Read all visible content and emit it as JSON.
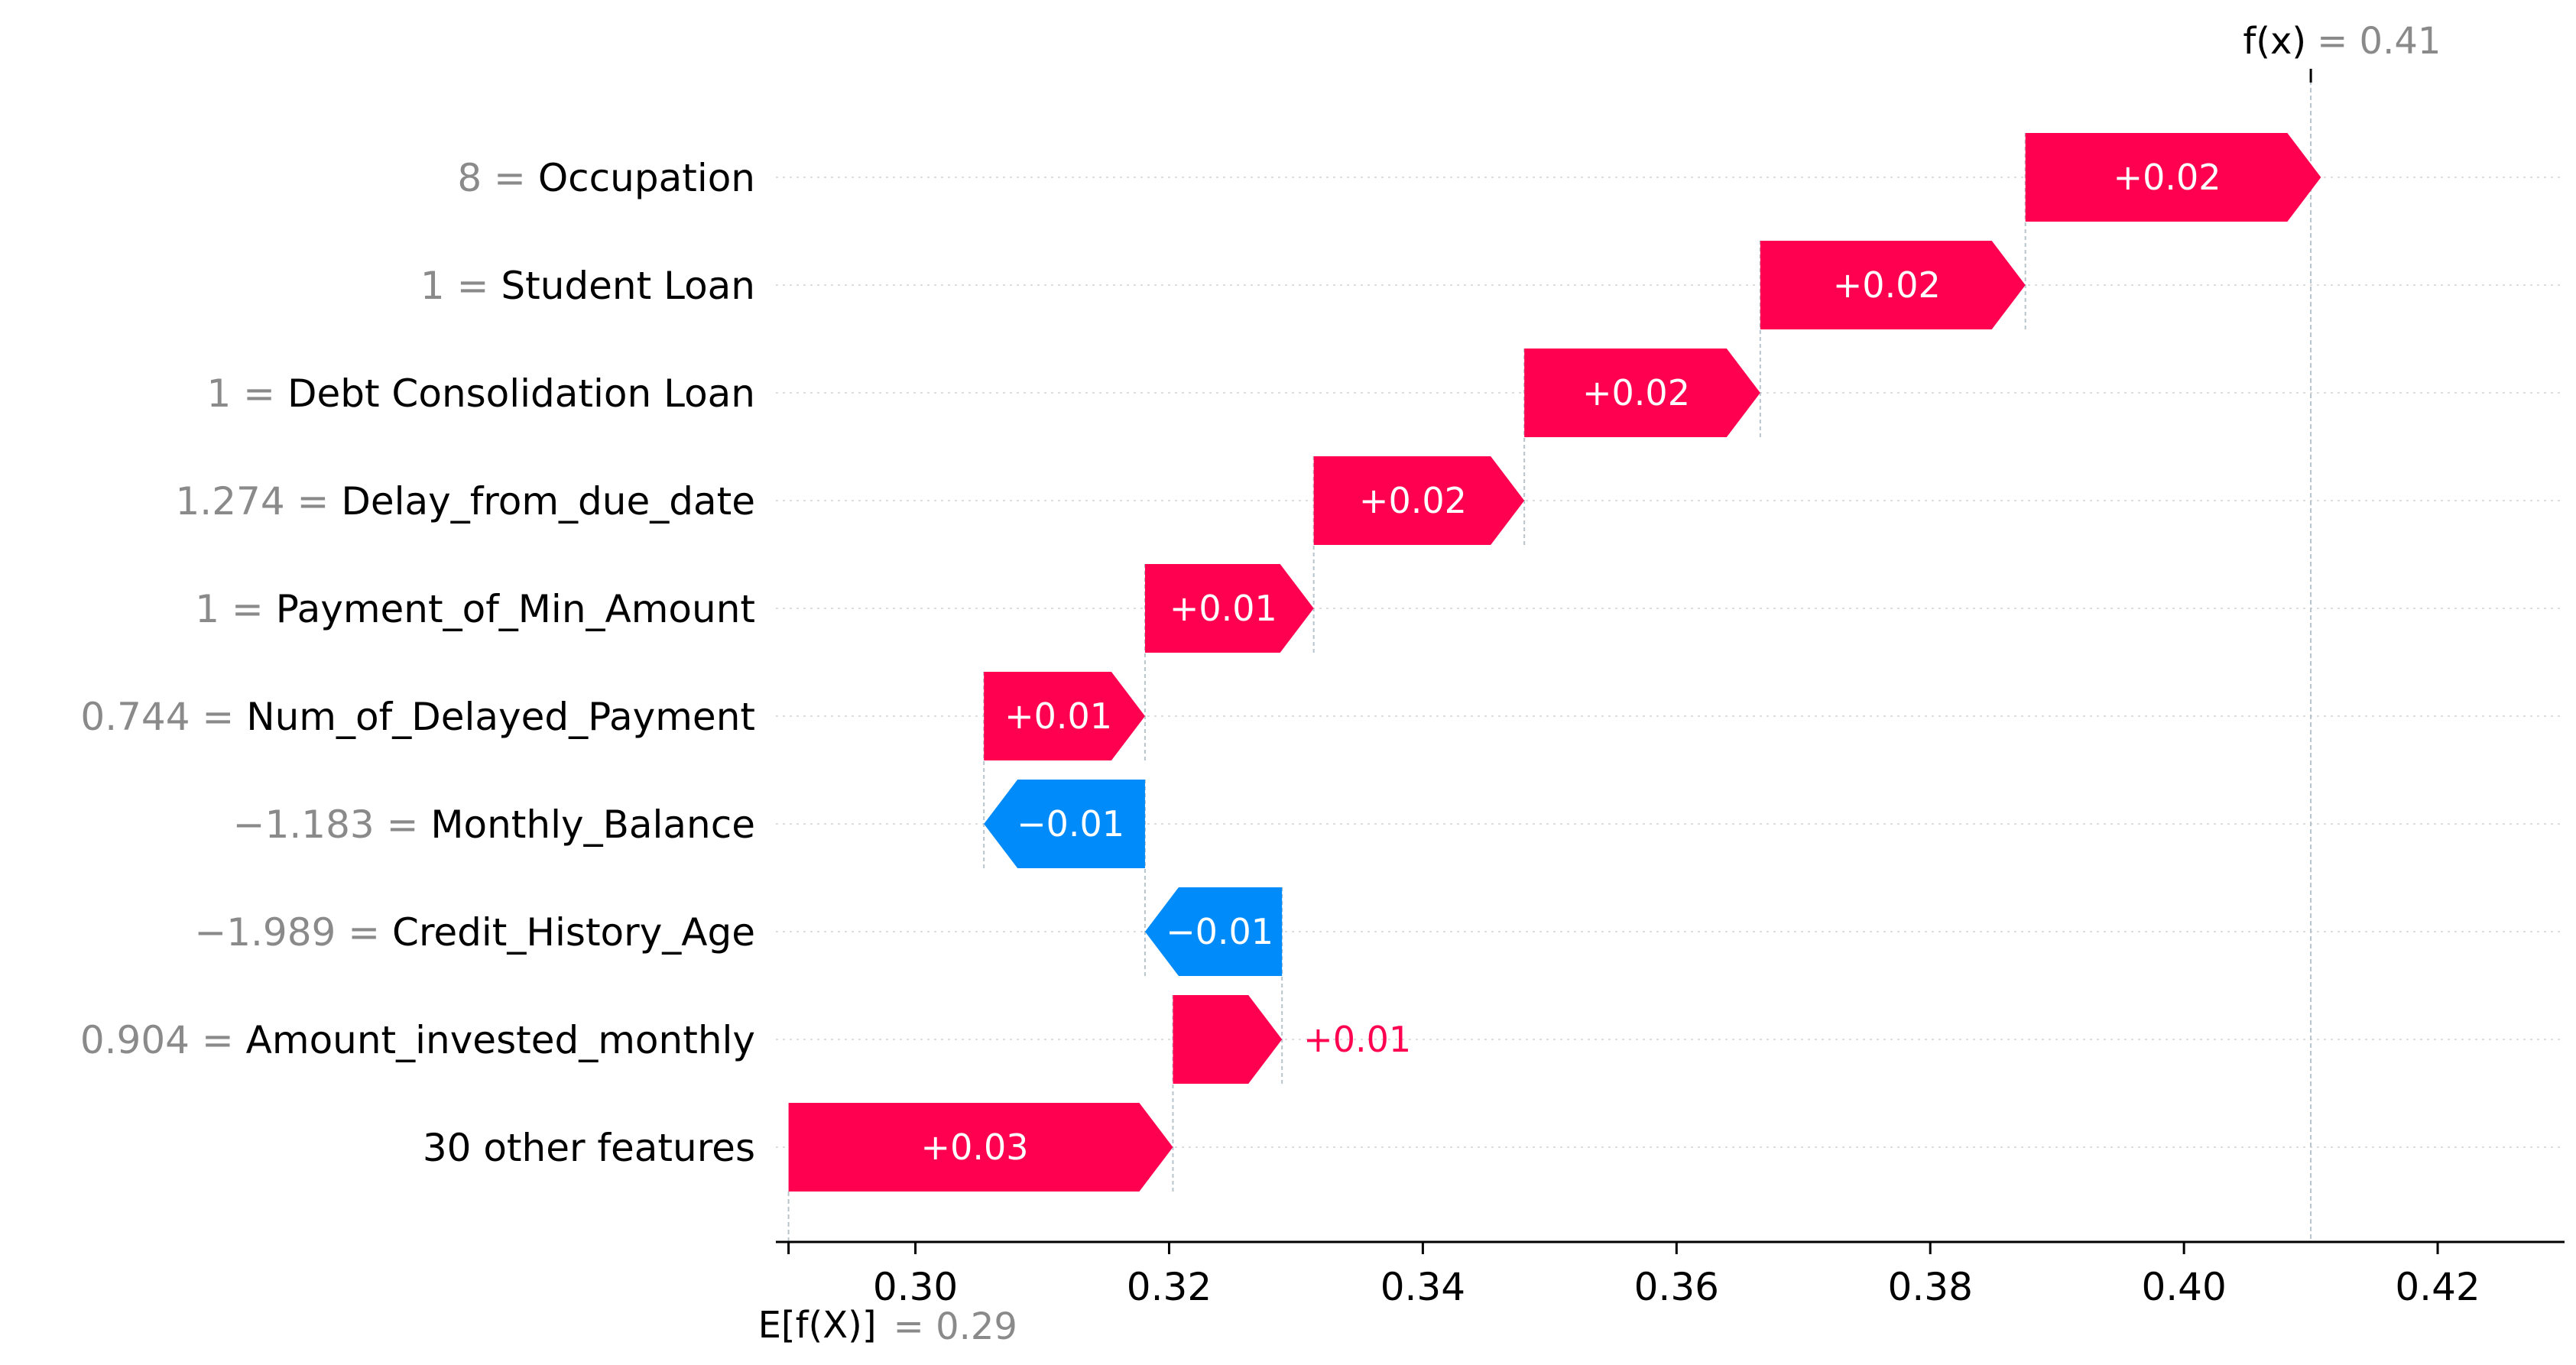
{
  "chart_data": {
    "type": "waterfall",
    "base_value": 0.29,
    "final_value": 0.41,
    "base_label": "E[f(X)]",
    "base_value_text": "= 0.29",
    "final_label": "f(x)",
    "final_value_text": "= 0.41",
    "xlim": [
      0.289,
      0.43
    ],
    "xticks": [
      0.3,
      0.32,
      0.34,
      0.36,
      0.38,
      0.4,
      0.42
    ],
    "xtick_labels": [
      "0.30",
      "0.32",
      "0.34",
      "0.36",
      "0.38",
      "0.40",
      "0.42"
    ],
    "features": [
      {
        "value_text": "8",
        "name": "Occupation",
        "shap": 0.0233,
        "label": "+0.02"
      },
      {
        "value_text": "1",
        "name": "Student Loan",
        "shap": 0.0209,
        "label": "+0.02"
      },
      {
        "value_text": "1",
        "name": "Debt Consolidation Loan",
        "shap": 0.0186,
        "label": "+0.02"
      },
      {
        "value_text": "1.274",
        "name": "Delay_from_due_date",
        "shap": 0.0166,
        "label": "+0.02"
      },
      {
        "value_text": "1",
        "name": "Payment_of_Min_Amount",
        "shap": 0.0133,
        "label": "+0.01"
      },
      {
        "value_text": "0.744",
        "name": "Num_of_Delayed_Payment",
        "shap": 0.0127,
        "label": "+0.01"
      },
      {
        "value_text": "−1.183",
        "name": "Monthly_Balance",
        "shap": -0.0127,
        "label": "−0.01"
      },
      {
        "value_text": "−1.989",
        "name": "Credit_History_Age",
        "shap": -0.0108,
        "label": "−0.01"
      },
      {
        "value_text": "0.904",
        "name": "Amount_invested_monthly",
        "shap": 0.0086,
        "label": "+0.01"
      },
      {
        "value_text": "",
        "name": "30 other features",
        "shap": 0.0303,
        "label": "+0.03"
      }
    ],
    "colors": {
      "positive": "#ff0051",
      "negative": "#008bfb",
      "value_text": "#8a8a8a"
    }
  }
}
